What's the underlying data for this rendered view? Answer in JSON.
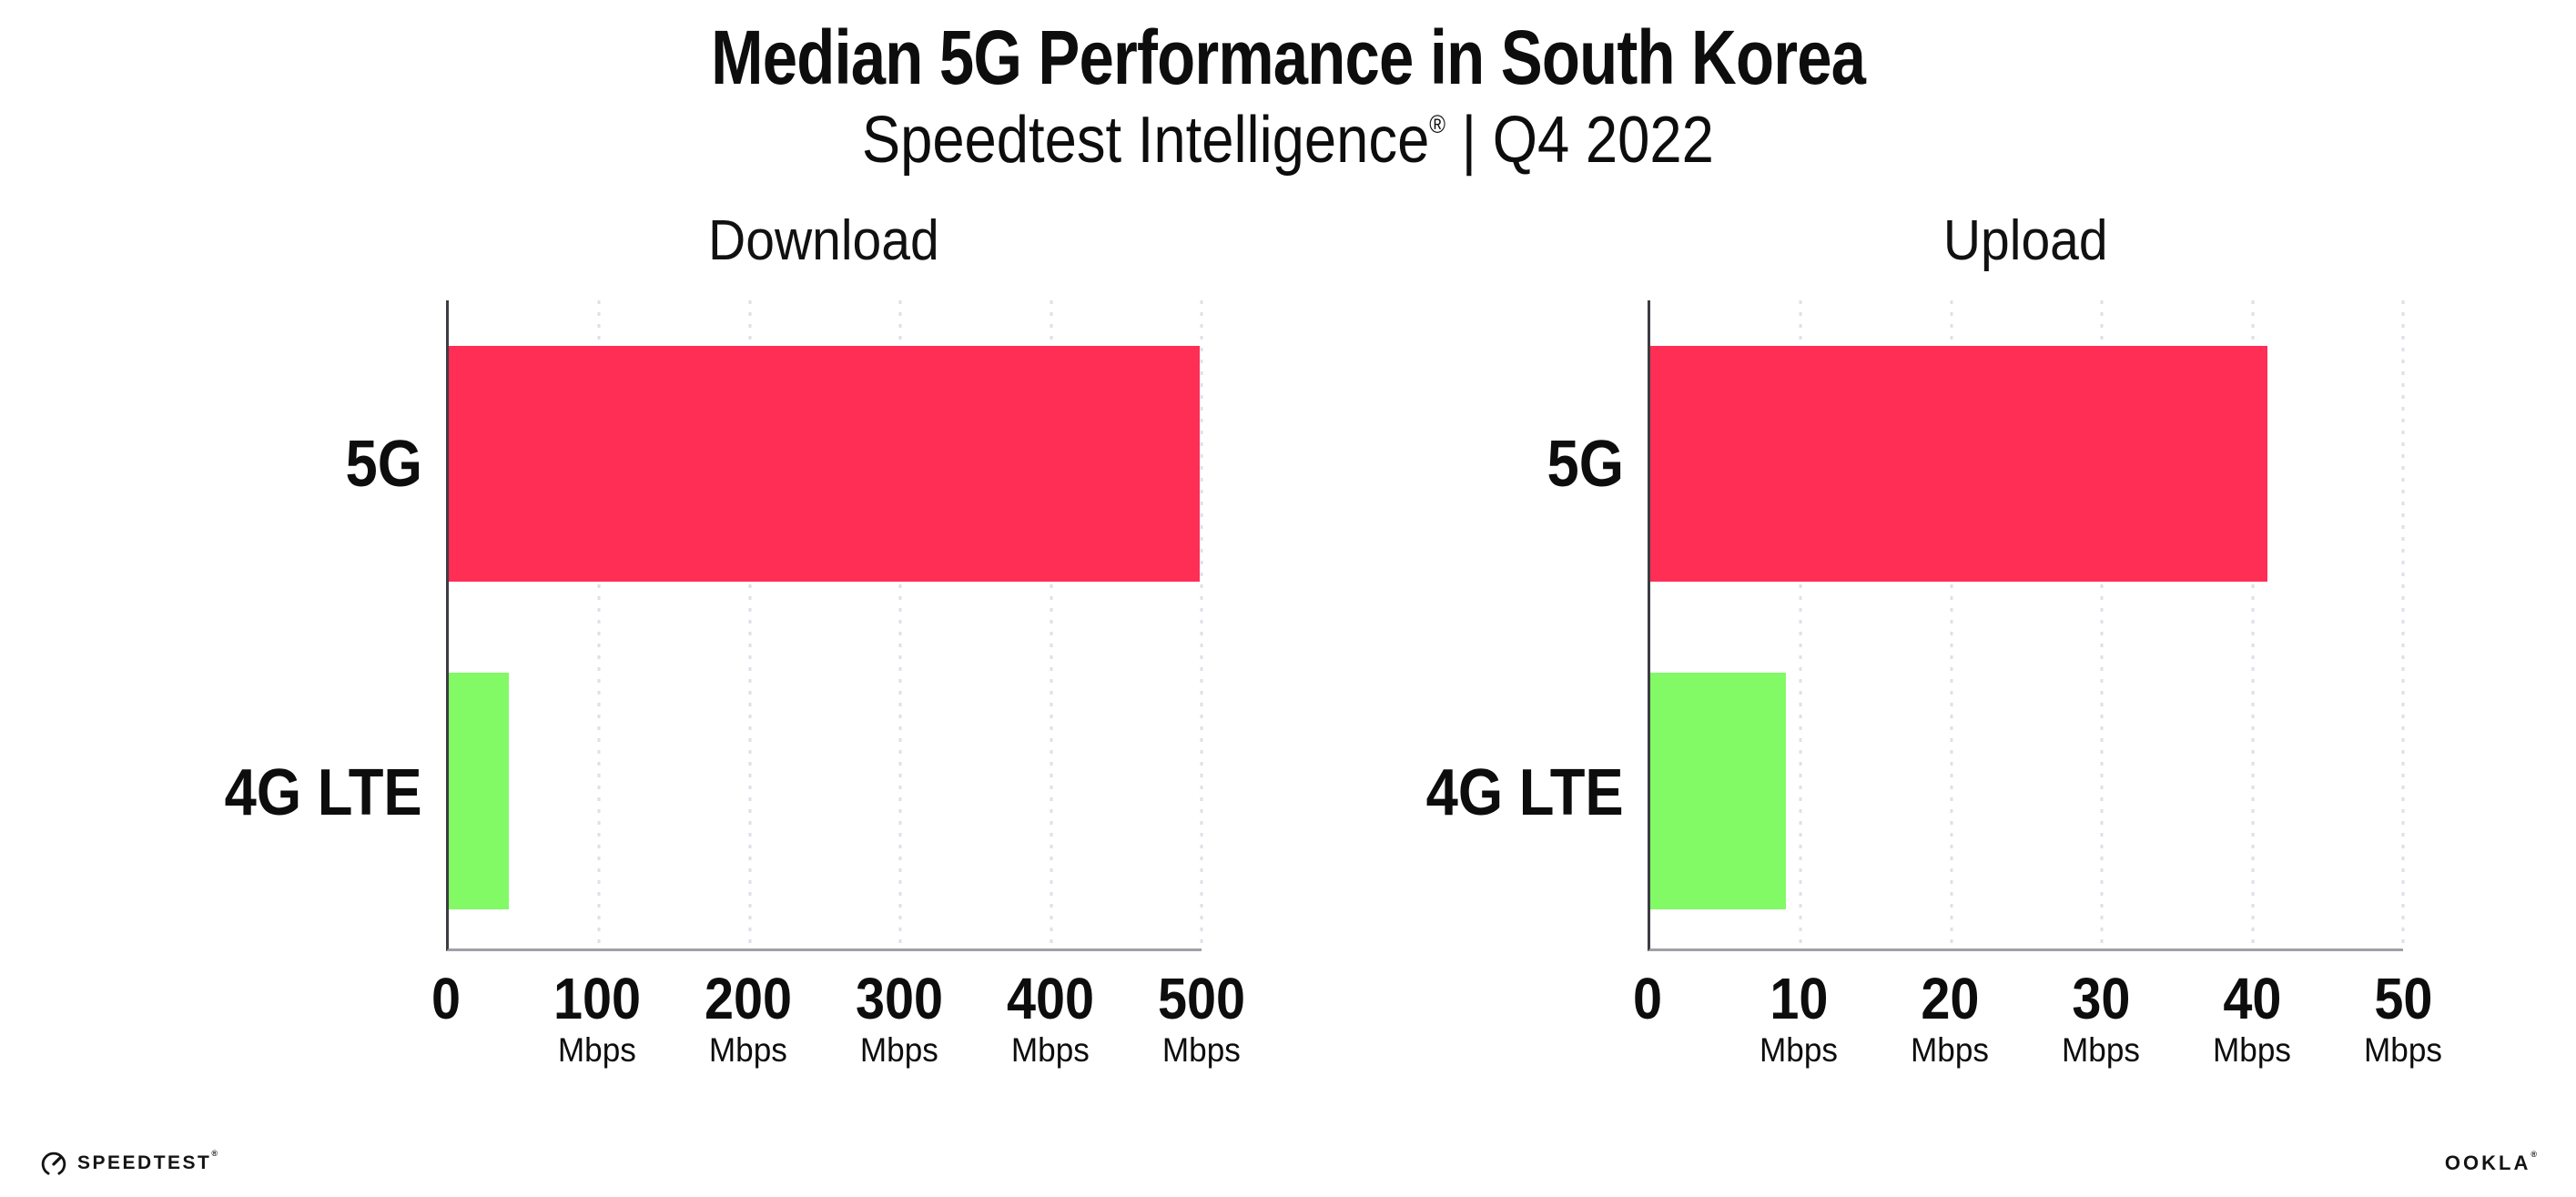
{
  "header": {
    "title": "Median 5G Performance in South Korea",
    "subtitle_brand": "Speedtest Intelligence",
    "subtitle_reg": "®",
    "subtitle_rest": " | Q4 2022"
  },
  "chart_data": [
    {
      "type": "bar",
      "orientation": "horizontal",
      "title": "Download",
      "categories": [
        "5G",
        "4G LTE"
      ],
      "values": [
        499,
        40
      ],
      "unit": "Mbps",
      "xlim": [
        0,
        500
      ],
      "xticks": [
        0,
        100,
        200,
        300,
        400,
        500
      ],
      "bar_colors": [
        "#FF2E55",
        "#81FA66"
      ],
      "grid": "dotted-vertical",
      "legend": "none"
    },
    {
      "type": "bar",
      "orientation": "horizontal",
      "title": "Upload",
      "categories": [
        "5G",
        "4G LTE"
      ],
      "values": [
        41,
        9
      ],
      "unit": "Mbps",
      "xlim": [
        0,
        50
      ],
      "xticks": [
        0,
        10,
        20,
        30,
        40,
        50
      ],
      "bar_colors": [
        "#FF2E55",
        "#81FA66"
      ],
      "grid": "dotted-vertical",
      "legend": "none"
    }
  ],
  "colors": {
    "bar_5g": "#FF2E55",
    "bar_4g_lte": "#81FA66",
    "gridline": "#DFDFE8",
    "y_axis": "#3C3C42",
    "x_axis": "#A0A0A8",
    "text": "#0D0D0D"
  },
  "footer": {
    "speedtest_label": "SPEEDTEST",
    "speedtest_reg": "®",
    "ookla_label": "OOKLA",
    "ookla_reg": "®"
  }
}
